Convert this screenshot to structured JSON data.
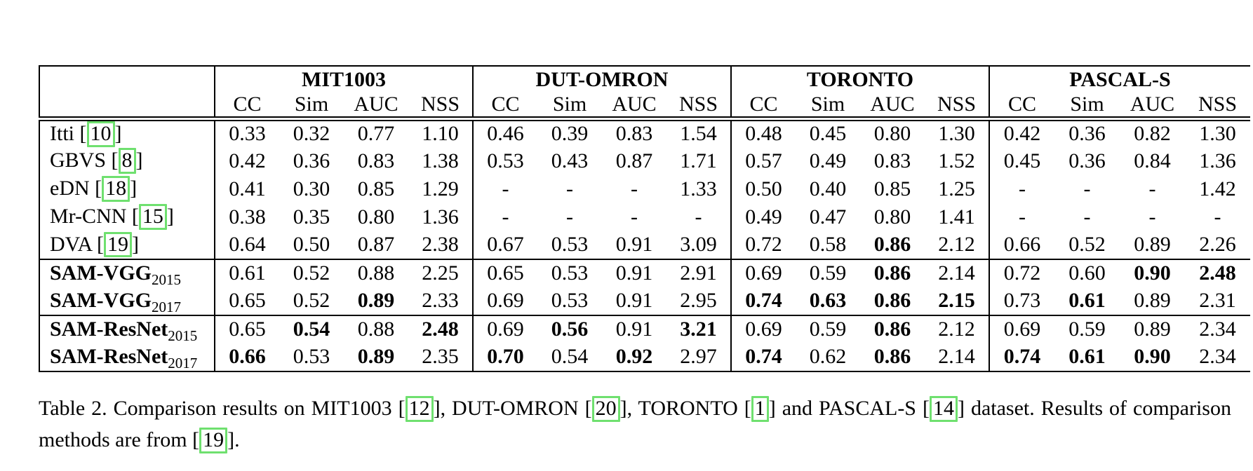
{
  "colors": {
    "citation_box": "#6fe06f",
    "text": "#000000",
    "background": "#ffffff"
  },
  "table": {
    "groups": [
      {
        "name": "MIT1003",
        "metrics": [
          "CC",
          "Sim",
          "AUC",
          "NSS"
        ]
      },
      {
        "name": "DUT-OMRON",
        "metrics": [
          "CC",
          "Sim",
          "AUC",
          "NSS"
        ]
      },
      {
        "name": "TORONTO",
        "metrics": [
          "CC",
          "Sim",
          "AUC",
          "NSS"
        ]
      },
      {
        "name": "PASCAL-S",
        "metrics": [
          "CC",
          "Sim",
          "AUC",
          "NSS"
        ]
      }
    ],
    "rows": [
      {
        "method": "Itti",
        "cite": "10",
        "sub": "",
        "bold_name": false,
        "section_start": false,
        "values": [
          "0.33",
          "0.32",
          "0.77",
          "1.10",
          "0.46",
          "0.39",
          "0.83",
          "1.54",
          "0.48",
          "0.45",
          "0.80",
          "1.30",
          "0.42",
          "0.36",
          "0.82",
          "1.30"
        ],
        "bold": [
          0,
          0,
          0,
          0,
          0,
          0,
          0,
          0,
          0,
          0,
          0,
          0,
          0,
          0,
          0,
          0
        ]
      },
      {
        "method": "GBVS",
        "cite": "8",
        "sub": "",
        "bold_name": false,
        "section_start": false,
        "values": [
          "0.42",
          "0.36",
          "0.83",
          "1.38",
          "0.53",
          "0.43",
          "0.87",
          "1.71",
          "0.57",
          "0.49",
          "0.83",
          "1.52",
          "0.45",
          "0.36",
          "0.84",
          "1.36"
        ],
        "bold": [
          0,
          0,
          0,
          0,
          0,
          0,
          0,
          0,
          0,
          0,
          0,
          0,
          0,
          0,
          0,
          0
        ]
      },
      {
        "method": "eDN",
        "cite": "18",
        "sub": "",
        "bold_name": false,
        "section_start": false,
        "values": [
          "0.41",
          "0.30",
          "0.85",
          "1.29",
          "-",
          "-",
          "-",
          "1.33",
          "0.50",
          "0.40",
          "0.85",
          "1.25",
          "-",
          "-",
          "-",
          "1.42"
        ],
        "bold": [
          0,
          0,
          0,
          0,
          0,
          0,
          0,
          0,
          0,
          0,
          0,
          0,
          0,
          0,
          0,
          0
        ]
      },
      {
        "method": "Mr-CNN",
        "cite": "15",
        "sub": "",
        "bold_name": false,
        "section_start": false,
        "values": [
          "0.38",
          "0.35",
          "0.80",
          "1.36",
          "-",
          "-",
          "-",
          "-",
          "0.49",
          "0.47",
          "0.80",
          "1.41",
          "-",
          "-",
          "-",
          "-"
        ],
        "bold": [
          0,
          0,
          0,
          0,
          0,
          0,
          0,
          0,
          0,
          0,
          0,
          0,
          0,
          0,
          0,
          0
        ]
      },
      {
        "method": "DVA",
        "cite": "19",
        "sub": "",
        "bold_name": false,
        "section_start": false,
        "values": [
          "0.64",
          "0.50",
          "0.87",
          "2.38",
          "0.67",
          "0.53",
          "0.91",
          "3.09",
          "0.72",
          "0.58",
          "0.86",
          "2.12",
          "0.66",
          "0.52",
          "0.89",
          "2.26"
        ],
        "bold": [
          0,
          0,
          0,
          0,
          0,
          0,
          0,
          0,
          0,
          0,
          1,
          0,
          0,
          0,
          0,
          0
        ]
      },
      {
        "method": "SAM-VGG",
        "cite": "",
        "sub": "2015",
        "bold_name": true,
        "section_start": true,
        "values": [
          "0.61",
          "0.52",
          "0.88",
          "2.25",
          "0.65",
          "0.53",
          "0.91",
          "2.91",
          "0.69",
          "0.59",
          "0.86",
          "2.14",
          "0.72",
          "0.60",
          "0.90",
          "2.48"
        ],
        "bold": [
          0,
          0,
          0,
          0,
          0,
          0,
          0,
          0,
          0,
          0,
          1,
          0,
          0,
          0,
          1,
          1
        ]
      },
      {
        "method": "SAM-VGG",
        "cite": "",
        "sub": "2017",
        "bold_name": true,
        "section_start": false,
        "values": [
          "0.65",
          "0.52",
          "0.89",
          "2.33",
          "0.69",
          "0.53",
          "0.91",
          "2.95",
          "0.74",
          "0.63",
          "0.86",
          "2.15",
          "0.73",
          "0.61",
          "0.89",
          "2.31"
        ],
        "bold": [
          0,
          0,
          1,
          0,
          0,
          0,
          0,
          0,
          1,
          1,
          1,
          1,
          0,
          1,
          0,
          0
        ]
      },
      {
        "method": "SAM-ResNet",
        "cite": "",
        "sub": "2015",
        "bold_name": true,
        "section_start": true,
        "values": [
          "0.65",
          "0.54",
          "0.88",
          "2.48",
          "0.69",
          "0.56",
          "0.91",
          "3.21",
          "0.69",
          "0.59",
          "0.86",
          "2.12",
          "0.69",
          "0.59",
          "0.89",
          "2.34"
        ],
        "bold": [
          0,
          1,
          0,
          1,
          0,
          1,
          0,
          1,
          0,
          0,
          1,
          0,
          0,
          0,
          0,
          0
        ]
      },
      {
        "method": "SAM-ResNet",
        "cite": "",
        "sub": "2017",
        "bold_name": true,
        "section_start": false,
        "values": [
          "0.66",
          "0.53",
          "0.89",
          "2.35",
          "0.70",
          "0.54",
          "0.92",
          "2.97",
          "0.74",
          "0.62",
          "0.86",
          "2.14",
          "0.74",
          "0.61",
          "0.90",
          "2.34"
        ],
        "bold": [
          1,
          0,
          1,
          0,
          1,
          0,
          1,
          0,
          1,
          0,
          1,
          0,
          1,
          1,
          1,
          0
        ]
      }
    ]
  },
  "caption": {
    "line1": [
      {
        "text": "Table 2. Comparison results on MIT1003 ["
      },
      {
        "cite": "12"
      },
      {
        "text": "], DUT-OMRON ["
      },
      {
        "cite": "20"
      },
      {
        "text": "], TORONTO ["
      },
      {
        "cite": "1"
      },
      {
        "text": "] and PASCAL-S ["
      },
      {
        "cite": "14"
      },
      {
        "text": "] dataset. Results of comparison"
      }
    ],
    "line2": [
      {
        "text": "methods are from ["
      },
      {
        "cite": "19"
      },
      {
        "text": "]."
      }
    ]
  }
}
